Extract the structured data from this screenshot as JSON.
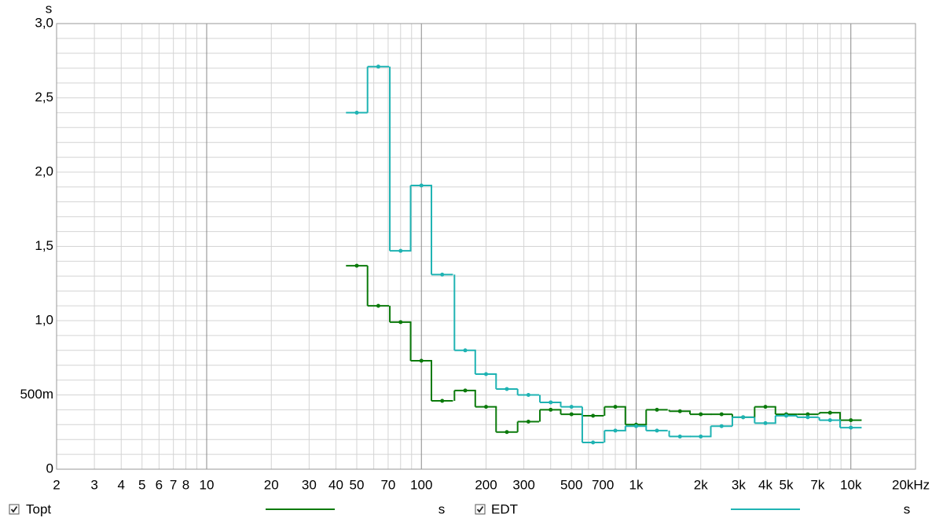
{
  "chart_data": {
    "type": "step",
    "y_label": "s",
    "xlog": true,
    "grid": true,
    "xlim": [
      2,
      20000
    ],
    "ylim": [
      0,
      3
    ],
    "xticks": [
      2,
      3,
      4,
      5,
      6,
      7,
      8,
      10,
      20,
      30,
      40,
      50,
      70,
      100,
      200,
      300,
      500,
      700,
      {
        "value": 1000,
        "label": "1k"
      },
      {
        "value": 2000,
        "label": "2k"
      },
      {
        "value": 3000,
        "label": "3k"
      },
      {
        "value": 4000,
        "label": "4k"
      },
      {
        "value": 5000,
        "label": "5k"
      },
      {
        "value": 7000,
        "label": "7k"
      },
      {
        "value": 10000,
        "label": "10k"
      },
      {
        "value": 20000,
        "label": "20kHz"
      }
    ],
    "xminorticks": [
      9,
      60,
      80,
      90,
      400,
      600,
      800,
      900,
      6000,
      8000,
      9000
    ],
    "yticks": [
      0,
      {
        "value": 0.5,
        "label": "500m"
      },
      {
        "value": 1,
        "label": "1,0"
      },
      {
        "value": 1.5,
        "label": "1,5"
      },
      {
        "value": 2,
        "label": "2,0"
      },
      {
        "value": 2.5,
        "label": "2,5"
      },
      {
        "value": 3,
        "label": "3,0"
      }
    ],
    "yminorticks": [
      0.1,
      0.2,
      0.3,
      0.4,
      0.6,
      0.7,
      0.8,
      0.9,
      1.1,
      1.2,
      1.3,
      1.4,
      1.6,
      1.7,
      1.8,
      1.9,
      2.1,
      2.2,
      2.3,
      2.4,
      2.6,
      2.7,
      2.8,
      2.9
    ],
    "x": [
      50,
      63,
      80,
      100,
      125,
      160,
      200,
      250,
      315,
      400,
      500,
      630,
      800,
      1000,
      1250,
      1600,
      2000,
      2500,
      3150,
      4000,
      5000,
      6300,
      8000,
      10000
    ],
    "series": [
      {
        "name": "Topt",
        "unit": "s",
        "color": "#0b7a0b",
        "values": [
          1.37,
          1.1,
          0.99,
          0.73,
          0.46,
          0.53,
          0.42,
          0.25,
          0.32,
          0.4,
          0.37,
          0.36,
          0.42,
          0.3,
          0.4,
          0.39,
          0.37,
          0.37,
          0.35,
          0.42,
          0.37,
          0.37,
          0.38,
          0.33
        ]
      },
      {
        "name": "EDT",
        "unit": "s",
        "color": "#1fb3b3",
        "values": [
          2.4,
          2.71,
          1.47,
          1.91,
          1.31,
          0.8,
          0.64,
          0.54,
          0.5,
          0.45,
          0.42,
          0.18,
          0.26,
          0.29,
          0.26,
          0.22,
          0.22,
          0.29,
          0.35,
          0.31,
          0.36,
          0.35,
          0.33,
          0.28
        ]
      }
    ]
  }
}
